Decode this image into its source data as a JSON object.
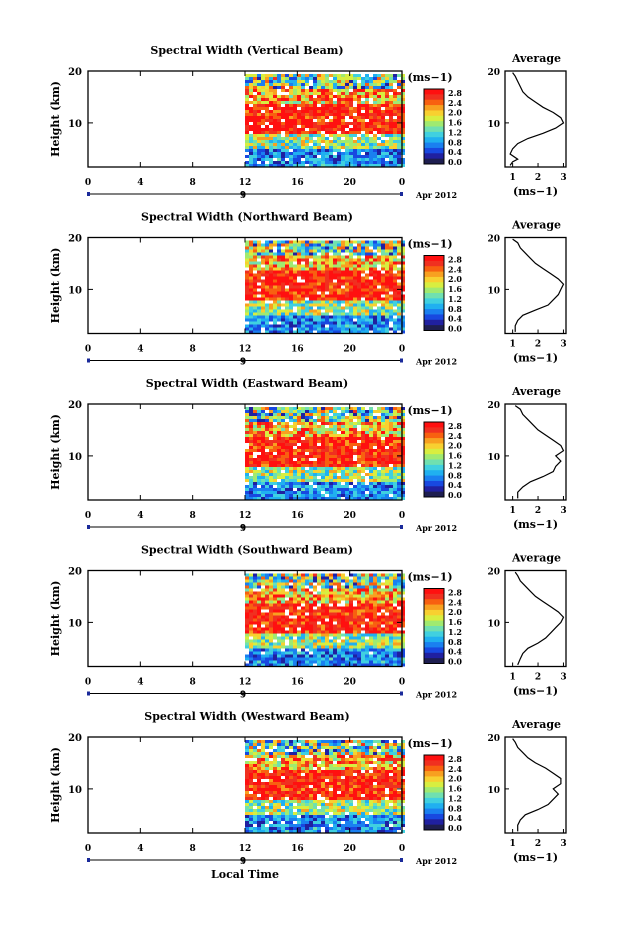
{
  "figure": {
    "xlabel": "Local Time",
    "month_label": "Apr 2012",
    "day_label": "9"
  },
  "chart_data": [
    {
      "type": "heatmap",
      "title": "Spectral Width (Vertical Beam)",
      "ylabel": "Height (km)",
      "xticks": [
        "0",
        "4",
        "8",
        "12",
        "16",
        "20",
        "0"
      ],
      "yticks": [
        "20",
        "10"
      ],
      "xlim": [
        0,
        24
      ],
      "ylim": [
        1.5,
        20
      ],
      "data_start_hour": 12,
      "colorbar": {
        "unit": "(ms−1)",
        "ticks": [
          "2.8",
          "2.4",
          "2.0",
          "1.6",
          "1.2",
          "0.8",
          "0.4",
          "0.0"
        ]
      },
      "avg": {
        "title": "Average",
        "xlabel": "(ms−1)",
        "xticks": [
          "1",
          "2",
          "3"
        ],
        "yticks": [
          "20",
          "10"
        ],
        "xlim": [
          0.7,
          3.1
        ],
        "profile": [
          [
            0.9,
            1.8
          ],
          [
            1.0,
            2.5
          ],
          [
            1.2,
            3
          ],
          [
            0.9,
            4
          ],
          [
            1.0,
            5
          ],
          [
            1.2,
            6
          ],
          [
            1.6,
            7
          ],
          [
            2.2,
            8
          ],
          [
            2.7,
            9
          ],
          [
            3.0,
            10
          ],
          [
            2.9,
            11
          ],
          [
            2.6,
            12
          ],
          [
            2.2,
            13
          ],
          [
            1.9,
            14
          ],
          [
            1.6,
            15
          ],
          [
            1.4,
            16
          ],
          [
            1.3,
            17
          ],
          [
            1.2,
            18
          ],
          [
            1.1,
            19
          ],
          [
            1.0,
            19.7
          ]
        ]
      }
    },
    {
      "type": "heatmap",
      "title": "Spectral Width (Northward Beam)",
      "ylabel": "Height (km)",
      "xticks": [
        "0",
        "4",
        "8",
        "12",
        "16",
        "20",
        "0"
      ],
      "yticks": [
        "20",
        "10"
      ],
      "xlim": [
        0,
        24
      ],
      "ylim": [
        1.5,
        20
      ],
      "data_start_hour": 12,
      "colorbar": {
        "unit": "(ms−1)",
        "ticks": [
          "2.8",
          "2.4",
          "2.0",
          "1.6",
          "1.2",
          "0.8",
          "0.4",
          "0.0"
        ]
      },
      "avg": {
        "title": "Average",
        "xlabel": "(ms−1)",
        "xticks": [
          "1",
          "2",
          "3"
        ],
        "yticks": [
          "20",
          "10"
        ],
        "xlim": [
          0.7,
          3.1
        ],
        "profile": [
          [
            1.1,
            1.8
          ],
          [
            1.1,
            3
          ],
          [
            1.2,
            4
          ],
          [
            1.4,
            5
          ],
          [
            1.9,
            6
          ],
          [
            2.4,
            7
          ],
          [
            2.6,
            8
          ],
          [
            2.8,
            9
          ],
          [
            2.9,
            10
          ],
          [
            3.0,
            11
          ],
          [
            2.8,
            12
          ],
          [
            2.5,
            13
          ],
          [
            2.2,
            14
          ],
          [
            1.9,
            15
          ],
          [
            1.7,
            16
          ],
          [
            1.5,
            17
          ],
          [
            1.3,
            18
          ],
          [
            1.2,
            19
          ],
          [
            1.0,
            19.7
          ]
        ]
      }
    },
    {
      "type": "heatmap",
      "title": "Spectral Width (Eastward Beam)",
      "ylabel": "Height (km)",
      "xticks": [
        "0",
        "4",
        "8",
        "12",
        "16",
        "20",
        "0"
      ],
      "yticks": [
        "20",
        "10"
      ],
      "xlim": [
        0,
        24
      ],
      "ylim": [
        1.5,
        20
      ],
      "data_start_hour": 12,
      "colorbar": {
        "unit": "(ms−1)",
        "ticks": [
          "2.8",
          "2.4",
          "2.0",
          "1.6",
          "1.2",
          "0.8",
          "0.4",
          "0.0"
        ]
      },
      "avg": {
        "title": "Average",
        "xlabel": "(ms−1)",
        "xticks": [
          "1",
          "2",
          "3"
        ],
        "yticks": [
          "20",
          "10"
        ],
        "xlim": [
          0.7,
          3.1
        ],
        "profile": [
          [
            1.2,
            1.8
          ],
          [
            1.2,
            3
          ],
          [
            1.4,
            4
          ],
          [
            1.7,
            5
          ],
          [
            2.2,
            6
          ],
          [
            2.6,
            7
          ],
          [
            2.7,
            8
          ],
          [
            2.9,
            9
          ],
          [
            2.7,
            10
          ],
          [
            3.0,
            11
          ],
          [
            2.9,
            12
          ],
          [
            2.6,
            13
          ],
          [
            2.3,
            14
          ],
          [
            2.0,
            15
          ],
          [
            1.8,
            16
          ],
          [
            1.6,
            17
          ],
          [
            1.4,
            18
          ],
          [
            1.3,
            19
          ],
          [
            1.1,
            19.7
          ]
        ]
      }
    },
    {
      "type": "heatmap",
      "title": "Spectral Width (Southward Beam)",
      "ylabel": "Height (km)",
      "xticks": [
        "0",
        "4",
        "8",
        "12",
        "16",
        "20",
        "0"
      ],
      "yticks": [
        "20",
        "10"
      ],
      "xlim": [
        0,
        24
      ],
      "ylim": [
        1.5,
        20
      ],
      "data_start_hour": 12,
      "colorbar": {
        "unit": "(ms−1)",
        "ticks": [
          "2.8",
          "2.4",
          "2.0",
          "1.6",
          "1.2",
          "0.8",
          "0.4",
          "0.0"
        ]
      },
      "avg": {
        "title": "Average",
        "xlabel": "(ms−1)",
        "xticks": [
          "1",
          "2",
          "3"
        ],
        "yticks": [
          "20",
          "10"
        ],
        "xlim": [
          0.7,
          3.1
        ],
        "profile": [
          [
            1.2,
            1.8
          ],
          [
            1.3,
            3
          ],
          [
            1.4,
            4
          ],
          [
            1.6,
            5
          ],
          [
            2.0,
            6
          ],
          [
            2.3,
            7
          ],
          [
            2.5,
            8
          ],
          [
            2.7,
            9
          ],
          [
            2.9,
            10
          ],
          [
            3.0,
            11
          ],
          [
            2.8,
            12
          ],
          [
            2.5,
            13
          ],
          [
            2.2,
            14
          ],
          [
            1.9,
            15
          ],
          [
            1.7,
            16
          ],
          [
            1.5,
            17
          ],
          [
            1.3,
            18
          ],
          [
            1.2,
            19
          ],
          [
            1.1,
            19.7
          ]
        ]
      }
    },
    {
      "type": "heatmap",
      "title": "Spectral Width (Westward Beam)",
      "ylabel": "Height (km)",
      "xticks": [
        "0",
        "4",
        "8",
        "12",
        "16",
        "20",
        "0"
      ],
      "yticks": [
        "20",
        "10"
      ],
      "xlim": [
        0,
        24
      ],
      "ylim": [
        1.5,
        20
      ],
      "data_start_hour": 12,
      "colorbar": {
        "unit": "(ms−1)",
        "ticks": [
          "2.8",
          "2.4",
          "2.0",
          "1.6",
          "1.2",
          "0.8",
          "0.4",
          "0.0"
        ]
      },
      "avg": {
        "title": "Average",
        "xlabel": "(ms−1)",
        "xticks": [
          "1",
          "2",
          "3"
        ],
        "yticks": [
          "20",
          "10"
        ],
        "xlim": [
          0.7,
          3.1
        ],
        "profile": [
          [
            1.2,
            1.8
          ],
          [
            1.2,
            3
          ],
          [
            1.3,
            4
          ],
          [
            1.5,
            5
          ],
          [
            2.0,
            6
          ],
          [
            2.4,
            7
          ],
          [
            2.6,
            8
          ],
          [
            2.8,
            9
          ],
          [
            2.6,
            10
          ],
          [
            2.9,
            11
          ],
          [
            2.9,
            12
          ],
          [
            2.6,
            13
          ],
          [
            2.3,
            14
          ],
          [
            1.9,
            15
          ],
          [
            1.6,
            16
          ],
          [
            1.4,
            17
          ],
          [
            1.2,
            18
          ],
          [
            1.1,
            19
          ],
          [
            1.0,
            19.7
          ]
        ]
      }
    }
  ]
}
